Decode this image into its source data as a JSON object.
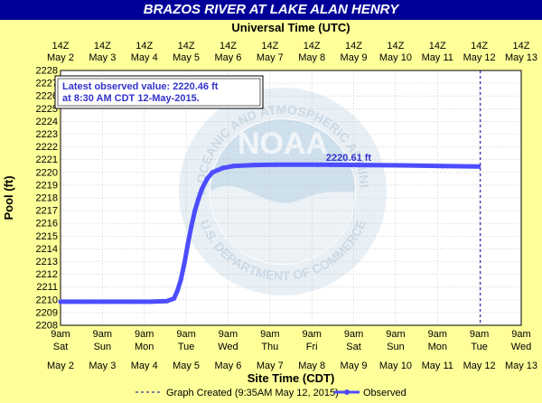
{
  "title": "BRAZOS RIVER AT LAKE ALAN HENRY",
  "colors": {
    "title_bg": "#000099",
    "title_fg": "#ffffff",
    "page_bg": "#ffff99",
    "plot_bg": "#ffffff",
    "series": "#4d4dff",
    "annotation_text": "#3333cc",
    "grid": "#bbbbbb"
  },
  "chart_data": {
    "type": "line",
    "top_axis_label": "Universal Time (UTC)",
    "xlabel": "Site Time (CDT)",
    "ylabel": "Pool (ft)",
    "ylim": [
      2208,
      2228
    ],
    "yticks": [
      2208,
      2209,
      2210,
      2211,
      2212,
      2213,
      2214,
      2215,
      2216,
      2217,
      2218,
      2219,
      2220,
      2221,
      2222,
      2223,
      2224,
      2225,
      2226,
      2227,
      2228
    ],
    "xlim_days": [
      "May 2",
      "May 13"
    ],
    "grid": true,
    "top_ticks": [
      {
        "hour": "14Z",
        "date": "May 2"
      },
      {
        "hour": "14Z",
        "date": "May 3"
      },
      {
        "hour": "14Z",
        "date": "May 4"
      },
      {
        "hour": "14Z",
        "date": "May 5"
      },
      {
        "hour": "14Z",
        "date": "May 6"
      },
      {
        "hour": "14Z",
        "date": "May 7"
      },
      {
        "hour": "14Z",
        "date": "May 8"
      },
      {
        "hour": "14Z",
        "date": "May 9"
      },
      {
        "hour": "14Z",
        "date": "May 10"
      },
      {
        "hour": "14Z",
        "date": "May 11"
      },
      {
        "hour": "14Z",
        "date": "May 12"
      },
      {
        "hour": "14Z",
        "date": "May 13"
      }
    ],
    "bottom_ticks": [
      {
        "time": "9am",
        "weekday": "Sat",
        "date": "May 2"
      },
      {
        "time": "9am",
        "weekday": "Sun",
        "date": "May 3"
      },
      {
        "time": "9am",
        "weekday": "Mon",
        "date": "May 4"
      },
      {
        "time": "9am",
        "weekday": "Tue",
        "date": "May 5"
      },
      {
        "time": "9am",
        "weekday": "Wed",
        "date": "May 6"
      },
      {
        "time": "9am",
        "weekday": "Thu",
        "date": "May 7"
      },
      {
        "time": "9am",
        "weekday": "Fri",
        "date": "May 8"
      },
      {
        "time": "9am",
        "weekday": "Sat",
        "date": "May 9"
      },
      {
        "time": "9am",
        "weekday": "Sun",
        "date": "May 10"
      },
      {
        "time": "9am",
        "weekday": "Mon",
        "date": "May 11"
      },
      {
        "time": "9am",
        "weekday": "Tue",
        "date": "May 12"
      },
      {
        "time": "9am",
        "weekday": "Wed",
        "date": "May 13"
      }
    ],
    "series": [
      {
        "name": "Observed",
        "x": [
          "2015-05-02 09:00",
          "2015-05-02 12:00",
          "2015-05-03 00:00",
          "2015-05-03 12:00",
          "2015-05-04 00:00",
          "2015-05-04 12:00",
          "2015-05-04 22:00",
          "2015-05-05 02:00",
          "2015-05-05 04:00",
          "2015-05-05 06:00",
          "2015-05-05 08:00",
          "2015-05-05 10:00",
          "2015-05-05 12:00",
          "2015-05-05 14:00",
          "2015-05-05 16:00",
          "2015-05-05 18:00",
          "2015-05-05 21:00",
          "2015-05-06 00:00",
          "2015-05-06 06:00",
          "2015-05-06 12:00",
          "2015-05-07 00:00",
          "2015-05-07 12:00",
          "2015-05-08 12:00",
          "2015-05-09 12:00",
          "2015-05-10 12:00",
          "2015-05-11 12:00",
          "2015-05-12 08:30"
        ],
        "y": [
          2209.85,
          2209.85,
          2209.85,
          2209.85,
          2209.85,
          2209.85,
          2209.9,
          2210.1,
          2210.7,
          2211.6,
          2212.9,
          2214.4,
          2215.8,
          2217.0,
          2217.9,
          2218.7,
          2219.5,
          2220.0,
          2220.35,
          2220.5,
          2220.58,
          2220.6,
          2220.6,
          2220.58,
          2220.55,
          2220.5,
          2220.46
        ]
      }
    ],
    "annotations": [
      {
        "text": "Latest observed value: 2220.46 ft at 8:30 AM CDT 12-May-2015."
      },
      {
        "text": "2220.61 ft"
      }
    ],
    "graph_created_marker": "2015-05-12 09:35"
  },
  "legend": {
    "graph_created": "Graph Created (9:35AM May 12, 2015)",
    "observed": "Observed"
  },
  "watermark": {
    "top_text": "NATIONAL OCEANIC AND ATMOSPHERIC ADMINISTRATION",
    "bottom_text": "U.S. DEPARTMENT OF COMMERCE",
    "logo_text": "NOAA"
  }
}
